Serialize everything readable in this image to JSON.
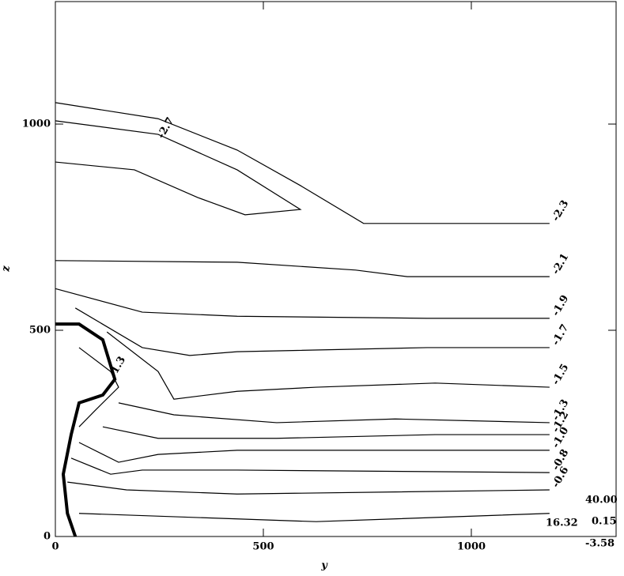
{
  "chart_data": {
    "type": "contour",
    "xlabel": "y",
    "ylabel": "z",
    "xlim": [
      0,
      1348
    ],
    "ylim": [
      0,
      1297
    ],
    "xticks": [
      0,
      500,
      1000
    ],
    "yticks": [
      0,
      500,
      1000
    ],
    "color": "#000000",
    "series": [
      {
        "name": "-2.3",
        "x": [
          0,
          247,
          437,
          589,
          741,
          1188
        ],
        "y": [
          1052,
          1013,
          937,
          851,
          759,
          759
        ]
      },
      {
        "name": "-2.7",
        "x": [
          0,
          247,
          437,
          589,
          456,
          342,
          190,
          0
        ],
        "y": [
          1008,
          975,
          889,
          793,
          780,
          822,
          889,
          908
        ]
      },
      {
        "name": "-2.1",
        "x": [
          0,
          437,
          722,
          846,
          1188
        ],
        "y": [
          669,
          665,
          646,
          630,
          630
        ]
      },
      {
        "name": "-1.9",
        "x": [
          0,
          209,
          437,
          894,
          1188
        ],
        "y": [
          601,
          544,
          534,
          529,
          529
        ]
      },
      {
        "name": "-1.7",
        "x": [
          48,
          209,
          323,
          437,
          894,
          1188
        ],
        "y": [
          554,
          458,
          439,
          448,
          458,
          458
        ]
      },
      {
        "name": "-1.5",
        "x": [
          124,
          247,
          285,
          437,
          627,
          913,
          1188
        ],
        "y": [
          496,
          400,
          333,
          352,
          362,
          372,
          362
        ]
      },
      {
        "name": "-1.3",
        "x": [
          152,
          285,
          532,
          817,
          1188
        ],
        "y": [
          324,
          295,
          276,
          285,
          276
        ]
      },
      {
        "name": "-1.2",
        "x": [
          114,
          247,
          532,
          913,
          1188
        ],
        "y": [
          266,
          238,
          238,
          247,
          247
        ]
      },
      {
        "name": "-1.0",
        "x": [
          57,
          152,
          247,
          437,
          1188
        ],
        "y": [
          228,
          180,
          199,
          209,
          209
        ]
      },
      {
        "name": "-0.8",
        "x": [
          38,
          133,
          209,
          437,
          1188
        ],
        "y": [
          190,
          151,
          161,
          161,
          155
        ]
      },
      {
        "name": "-0.6",
        "x": [
          29,
          171,
          437,
          1188
        ],
        "y": [
          132,
          113,
          103,
          113
        ]
      },
      {
        "x": [
          57,
          627,
          1188
        ],
        "y": [
          56,
          36,
          56
        ]
      },
      {
        "x": [
          0,
          57,
          114,
          143,
          114,
          57,
          38,
          19,
          29,
          48
        ],
        "y": [
          515,
          515,
          477,
          381,
          343,
          324,
          247,
          151,
          56,
          0
        ],
        "width": 4
      },
      {
        "name": "1.3",
        "x": [
          57,
          133,
          152,
          95,
          57
        ],
        "y": [
          458,
          400,
          362,
          305,
          266
        ]
      }
    ],
    "annotations": [
      "40.00",
      "0.15",
      "-3.58",
      "16.32"
    ]
  }
}
